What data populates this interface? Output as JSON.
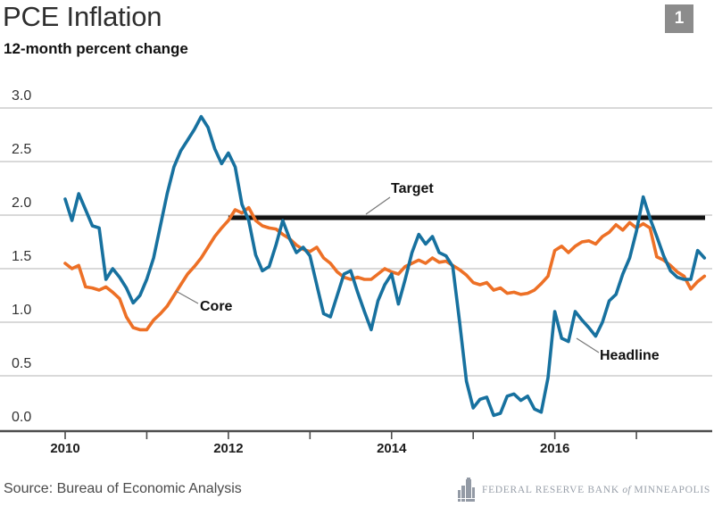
{
  "header": {
    "title": "PCE Inflation",
    "subtitle": "12-month percent change",
    "page_badge": "1",
    "badge_color": "#8c8c8c"
  },
  "footer": {
    "source": "Source: Bureau of Economic Analysis",
    "logo": {
      "icon": "federal-reserve-building-icon",
      "text_pre": "FEDERAL RESERVE BANK",
      "text_mid": "of",
      "text_post": "MINNEAPOLIS",
      "color": "#99a0aa"
    }
  },
  "chart_data": {
    "type": "line",
    "title": "PCE Inflation",
    "subtitle": "12-month percent change",
    "x_unit": "month",
    "x_start": "2010-01",
    "x_end": "2017-11",
    "xlim": [
      2009.2,
      2017.95
    ],
    "ylim": [
      0.0,
      3.0
    ],
    "grid": "horizontal",
    "legend": "inline-annotations",
    "y_tick_labels": [
      "3.0",
      "2.5",
      "2.0",
      "1.5",
      "1.0",
      "0.5",
      "0.0"
    ],
    "x_ticks": [
      2010,
      2011,
      2012,
      2013,
      2014,
      2015,
      2016,
      2017
    ],
    "x_tick_labels": [
      "2010",
      "2012",
      "2014",
      "2016"
    ],
    "target": {
      "label": "Target",
      "value": 2.0,
      "start_year": 2012.0,
      "color": "#111111"
    },
    "series": [
      {
        "name": "Headline",
        "color": "#17719f",
        "values": [
          2.15,
          1.95,
          2.2,
          2.05,
          1.9,
          1.88,
          1.4,
          1.5,
          1.42,
          1.32,
          1.18,
          1.25,
          1.4,
          1.6,
          1.9,
          2.2,
          2.45,
          2.6,
          2.7,
          2.8,
          2.92,
          2.82,
          2.62,
          2.48,
          2.58,
          2.45,
          2.1,
          1.95,
          1.63,
          1.48,
          1.52,
          1.72,
          1.95,
          1.78,
          1.65,
          1.7,
          1.62,
          1.35,
          1.08,
          1.05,
          1.25,
          1.45,
          1.48,
          1.28,
          1.1,
          0.93,
          1.2,
          1.35,
          1.45,
          1.17,
          1.4,
          1.65,
          1.82,
          1.73,
          1.8,
          1.65,
          1.62,
          1.52,
          1.0,
          0.45,
          0.2,
          0.28,
          0.3,
          0.13,
          0.15,
          0.31,
          0.33,
          0.27,
          0.31,
          0.19,
          0.16,
          0.48,
          1.1,
          0.85,
          0.82,
          1.1,
          1.02,
          0.95,
          0.87,
          1.0,
          1.2,
          1.26,
          1.45,
          1.6,
          1.85,
          2.17,
          1.97,
          1.8,
          1.62,
          1.48,
          1.42,
          1.4,
          1.4,
          1.67,
          1.6
        ]
      },
      {
        "name": "Core",
        "color": "#ed7026",
        "values": [
          1.55,
          1.5,
          1.53,
          1.33,
          1.32,
          1.3,
          1.33,
          1.28,
          1.22,
          1.05,
          0.95,
          0.93,
          0.93,
          1.02,
          1.08,
          1.15,
          1.25,
          1.35,
          1.45,
          1.52,
          1.6,
          1.7,
          1.8,
          1.88,
          1.95,
          2.05,
          2.02,
          2.07,
          1.95,
          1.9,
          1.88,
          1.87,
          1.82,
          1.78,
          1.72,
          1.68,
          1.66,
          1.7,
          1.6,
          1.55,
          1.47,
          1.42,
          1.4,
          1.42,
          1.4,
          1.4,
          1.45,
          1.5,
          1.47,
          1.45,
          1.52,
          1.55,
          1.58,
          1.55,
          1.6,
          1.56,
          1.57,
          1.53,
          1.49,
          1.44,
          1.37,
          1.35,
          1.37,
          1.3,
          1.32,
          1.27,
          1.28,
          1.26,
          1.27,
          1.3,
          1.36,
          1.43,
          1.67,
          1.71,
          1.65,
          1.71,
          1.75,
          1.76,
          1.73,
          1.8,
          1.84,
          1.91,
          1.86,
          1.93,
          1.88,
          1.92,
          1.88,
          1.61,
          1.58,
          1.53,
          1.47,
          1.43,
          1.31,
          1.38,
          1.43
        ]
      }
    ]
  }
}
